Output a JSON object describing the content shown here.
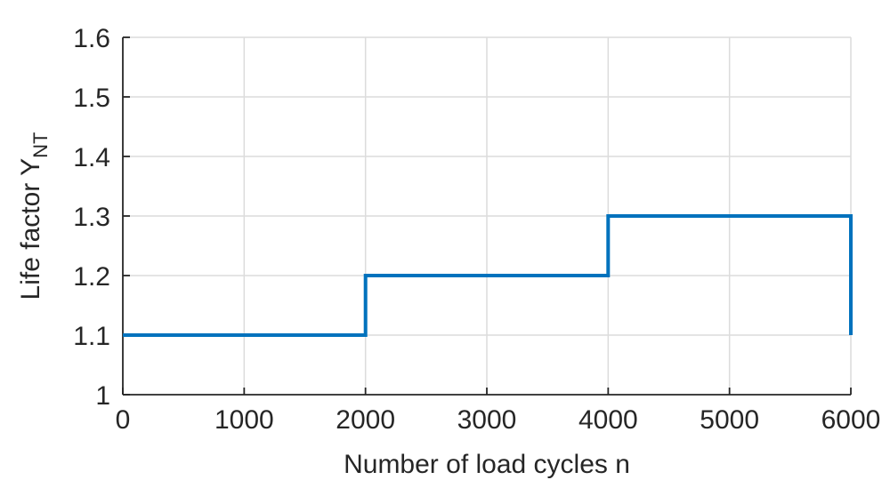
{
  "chart_data": {
    "type": "line",
    "line_style": "step",
    "title": "",
    "xlabel": "Number of load cycles n",
    "ylabel": {
      "base": "Life factor Y",
      "subscript": "NT"
    },
    "xlim": [
      0,
      6000
    ],
    "ylim": [
      1,
      1.6
    ],
    "xticks": [
      0,
      1000,
      2000,
      3000,
      4000,
      5000,
      6000
    ],
    "yticks": [
      1,
      1.1,
      1.2,
      1.3,
      1.4,
      1.5,
      1.6
    ],
    "xtick_labels": [
      "0",
      "1000",
      "2000",
      "3000",
      "4000",
      "5000",
      "6000"
    ],
    "ytick_labels": [
      "1",
      "1.1",
      "1.2",
      "1.3",
      "1.4",
      "1.5",
      "1.6"
    ],
    "grid": true,
    "legend": "none",
    "series": [
      {
        "color": "#0072bd",
        "x": [
          0,
          2000,
          2000,
          4000,
          4000,
          6000,
          6000
        ],
        "y": [
          1.1,
          1.1,
          1.2,
          1.2,
          1.3,
          1.3,
          1.1
        ]
      }
    ]
  }
}
